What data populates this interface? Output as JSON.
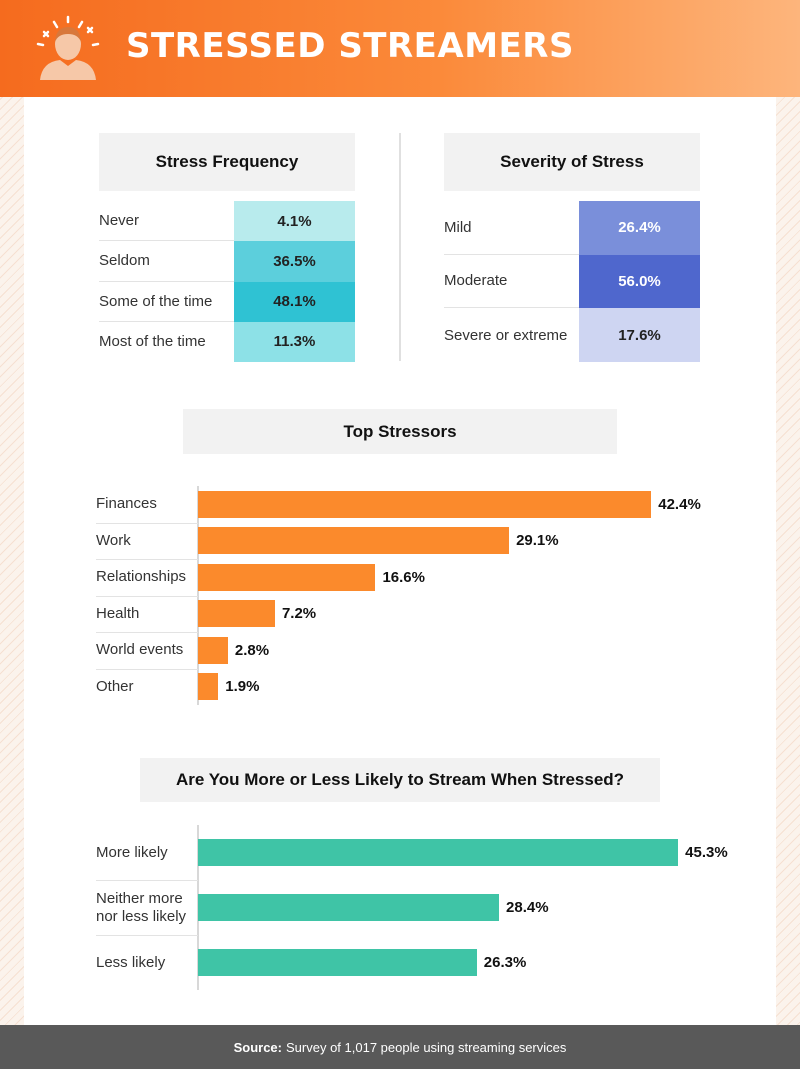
{
  "header": {
    "title": "STRESSED STREAMERS",
    "icon": "stressed-person-icon"
  },
  "colors": {
    "header_start": "#f56b1e",
    "frequency_cells": [
      "#b8ebed",
      "#5ccfdc",
      "#2fc2d3",
      "#8de1e7"
    ],
    "severity_cells": [
      "#7a8fda",
      "#4f67cd",
      "#ced5f2"
    ],
    "stressor_bar": "#fb8a2c",
    "stream_bar": "#3fc4a6"
  },
  "frequency": {
    "title": "Stress Frequency",
    "rows": [
      {
        "label": "Never",
        "value": "4.1%"
      },
      {
        "label": "Seldom",
        "value": "36.5%"
      },
      {
        "label": "Some of the time",
        "value": "48.1%"
      },
      {
        "label": "Most of the time",
        "value": "11.3%"
      }
    ]
  },
  "severity": {
    "title": "Severity of Stress",
    "rows": [
      {
        "label": "Mild",
        "value": "26.4%"
      },
      {
        "label": "Moderate",
        "value": "56.0%"
      },
      {
        "label": "Severe or extreme",
        "value": "17.6%"
      }
    ]
  },
  "stressors_title": "Top Stressors",
  "stream_title": "Are You More or Less Likely to Stream When Stressed?",
  "chart_data": [
    {
      "type": "table",
      "title": "Stress Frequency",
      "categories": [
        "Never",
        "Seldom",
        "Some of the time",
        "Most of the time"
      ],
      "values": [
        4.1,
        36.5,
        48.1,
        11.3
      ]
    },
    {
      "type": "table",
      "title": "Severity of Stress",
      "categories": [
        "Mild",
        "Moderate",
        "Severe or extreme"
      ],
      "values": [
        26.4,
        56.0,
        17.6
      ]
    },
    {
      "type": "bar",
      "title": "Top Stressors",
      "categories": [
        "Finances",
        "Work",
        "Relationships",
        "Health",
        "World events",
        "Other"
      ],
      "values": [
        42.4,
        29.1,
        16.6,
        7.2,
        2.8,
        1.9
      ],
      "value_labels": [
        "42.4%",
        "29.1%",
        "16.6%",
        "7.2%",
        "2.8%",
        "1.9%"
      ]
    },
    {
      "type": "bar",
      "title": "Are You More or Less Likely to Stream When Stressed?",
      "categories": [
        "More likely",
        "Neither more nor less likely",
        "Less likely"
      ],
      "values": [
        45.3,
        28.4,
        26.3
      ],
      "value_labels": [
        "45.3%",
        "28.4%",
        "26.3%"
      ]
    }
  ],
  "footer": {
    "source_label": "Source:",
    "source_text": "Survey of 1,017 people using streaming services"
  }
}
